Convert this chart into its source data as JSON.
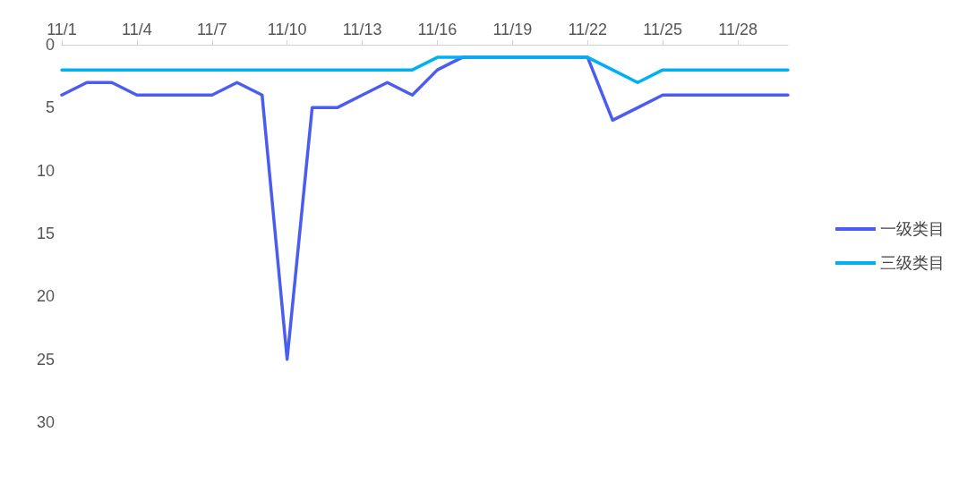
{
  "chart_data": {
    "type": "line",
    "categories": [
      "11/1",
      null,
      null,
      "11/4",
      null,
      null,
      "11/7",
      null,
      null,
      "11/10",
      null,
      null,
      "11/13",
      null,
      null,
      "11/16",
      null,
      null,
      "11/19",
      null,
      null,
      "11/22",
      null,
      null,
      "11/25",
      null,
      null,
      "11/28",
      null,
      null
    ],
    "series": [
      {
        "name": "一级类目",
        "color": "#4b5cf0",
        "values": [
          4,
          3,
          3,
          4,
          4,
          4,
          4,
          3,
          4,
          25,
          5,
          5,
          4,
          3,
          4,
          2,
          1,
          1,
          1,
          1,
          1,
          1,
          6,
          5,
          4,
          4,
          4,
          4,
          4,
          4
        ]
      },
      {
        "name": "三级类目",
        "color": "#00b0f0",
        "values": [
          2,
          2,
          2,
          2,
          2,
          2,
          2,
          2,
          2,
          2,
          2,
          2,
          2,
          2,
          2,
          1,
          1,
          1,
          1,
          1,
          1,
          1,
          2,
          3,
          2,
          2,
          2,
          2,
          2,
          2
        ]
      }
    ],
    "ylim": [
      30,
      0
    ],
    "yticks": [
      0,
      5,
      10,
      15,
      20,
      25,
      30
    ],
    "grid": false,
    "legend": "right",
    "marker": "none",
    "line_style": "solid"
  }
}
